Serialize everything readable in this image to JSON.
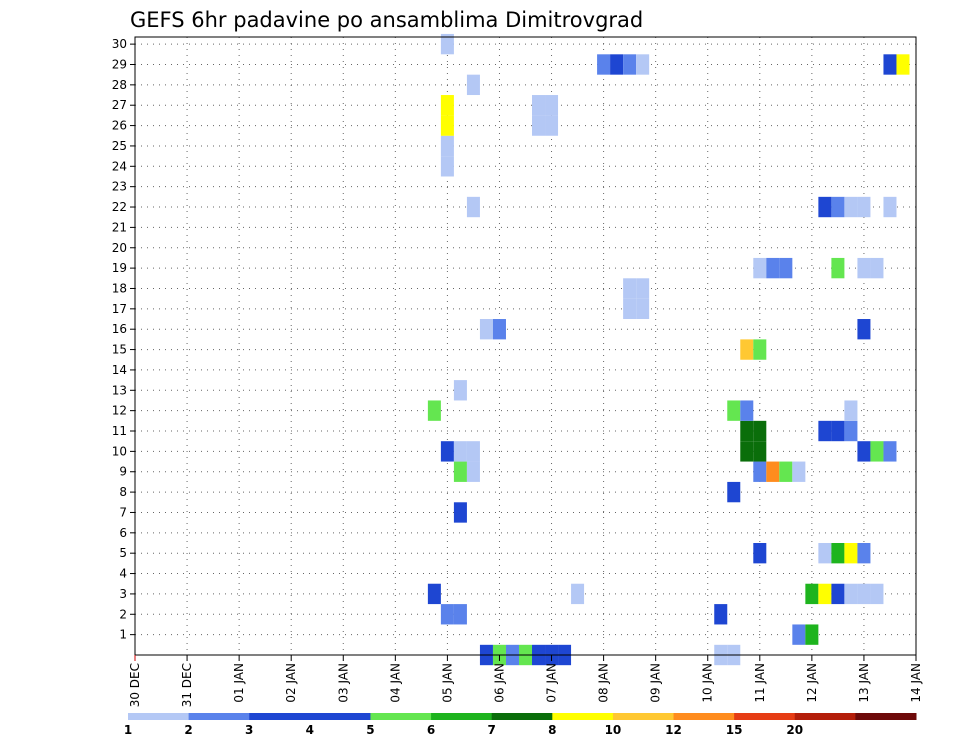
{
  "chart_data": {
    "type": "heatmap",
    "title": "GEFS 6hr padavine po ansamblima Dimitrovgrad",
    "xlabel": "",
    "ylabel": "",
    "x_tick_labels": [
      "30 DEC",
      "31 DEC",
      "01 JAN",
      "02 JAN",
      "03 JAN",
      "04 JAN",
      "05 JAN",
      "06 JAN",
      "07 JAN",
      "08 JAN",
      "09 JAN",
      "10 JAN",
      "11 JAN",
      "12 JAN",
      "13 JAN",
      "14 JAN"
    ],
    "x_range_days": [
      0,
      15
    ],
    "y_tick_labels": [
      "1",
      "2",
      "3",
      "4",
      "5",
      "6",
      "7",
      "8",
      "9",
      "10",
      "11",
      "12",
      "13",
      "14",
      "15",
      "16",
      "17",
      "18",
      "19",
      "20",
      "21",
      "22",
      "23",
      "24",
      "25",
      "26",
      "27",
      "28",
      "29",
      "30"
    ],
    "y_range": [
      0,
      30
    ],
    "grid": true,
    "legend": {
      "position": "bottom",
      "labels": [
        "1",
        "2",
        "3",
        "4",
        "5",
        "6",
        "7",
        "8",
        "10",
        "12",
        "15",
        "20"
      ],
      "colors": [
        "#b4c8f5",
        "#5a82eb",
        "#1e46d2",
        "#1e46d2",
        "#64e650",
        "#1eb41e",
        "#0a6e0a",
        "#ffff00",
        "#ffc832",
        "#ff8c1e",
        "#e63c14",
        "#b41e0a",
        "#6e0a0a"
      ]
    },
    "cell_width_days": 0.25,
    "cells": [
      {
        "member": 0,
        "day": 6.75,
        "class": 2
      },
      {
        "member": 0,
        "day": 7.0,
        "class": 4
      },
      {
        "member": 0,
        "day": 7.25,
        "class": 1
      },
      {
        "member": 0,
        "day": 7.5,
        "class": 4
      },
      {
        "member": 0,
        "day": 7.75,
        "class": 2
      },
      {
        "member": 0,
        "day": 8.0,
        "class": 2
      },
      {
        "member": 0,
        "day": 8.25,
        "class": 2
      },
      {
        "member": 0,
        "day": 11.25,
        "class": 0
      },
      {
        "member": 0,
        "day": 11.5,
        "class": 0
      },
      {
        "member": 1,
        "day": 12.75,
        "class": 1
      },
      {
        "member": 1,
        "day": 13.0,
        "class": 5
      },
      {
        "member": 2,
        "day": 6.0,
        "class": 1
      },
      {
        "member": 2,
        "day": 6.25,
        "class": 1
      },
      {
        "member": 2,
        "day": 11.25,
        "class": 2
      },
      {
        "member": 3,
        "day": 5.75,
        "class": 2
      },
      {
        "member": 3,
        "day": 8.5,
        "class": 0
      },
      {
        "member": 3,
        "day": 13.0,
        "class": 5
      },
      {
        "member": 3,
        "day": 13.25,
        "class": 7
      },
      {
        "member": 3,
        "day": 13.5,
        "class": 2
      },
      {
        "member": 3,
        "day": 13.75,
        "class": 0
      },
      {
        "member": 3,
        "day": 14.0,
        "class": 0
      },
      {
        "member": 3,
        "day": 14.25,
        "class": 0
      },
      {
        "member": 5,
        "day": 12.0,
        "class": 2
      },
      {
        "member": 5,
        "day": 13.25,
        "class": 0
      },
      {
        "member": 5,
        "day": 13.5,
        "class": 5
      },
      {
        "member": 5,
        "day": 13.75,
        "class": 7
      },
      {
        "member": 5,
        "day": 14.0,
        "class": 1
      },
      {
        "member": 7,
        "day": 6.25,
        "class": 2
      },
      {
        "member": 8,
        "day": 11.5,
        "class": 2
      },
      {
        "member": 9,
        "day": 6.25,
        "class": 4
      },
      {
        "member": 9,
        "day": 6.5,
        "class": 0
      },
      {
        "member": 9,
        "day": 12.0,
        "class": 1
      },
      {
        "member": 9,
        "day": 12.25,
        "class": 9
      },
      {
        "member": 9,
        "day": 12.5,
        "class": 4
      },
      {
        "member": 9,
        "day": 12.75,
        "class": 0
      },
      {
        "member": 10,
        "day": 6.0,
        "class": 2
      },
      {
        "member": 10,
        "day": 6.25,
        "class": 0
      },
      {
        "member": 10,
        "day": 6.5,
        "class": 0
      },
      {
        "member": 10,
        "day": 11.75,
        "class": 6
      },
      {
        "member": 10,
        "day": 12.0,
        "class": 6
      },
      {
        "member": 10,
        "day": 14.0,
        "class": 2
      },
      {
        "member": 10,
        "day": 14.25,
        "class": 4
      },
      {
        "member": 10,
        "day": 14.5,
        "class": 1
      },
      {
        "member": 11,
        "day": 11.75,
        "class": 6
      },
      {
        "member": 11,
        "day": 12.0,
        "class": 6
      },
      {
        "member": 11,
        "day": 13.25,
        "class": 2
      },
      {
        "member": 11,
        "day": 13.5,
        "class": 2
      },
      {
        "member": 11,
        "day": 13.75,
        "class": 1
      },
      {
        "member": 12,
        "day": 5.75,
        "class": 4
      },
      {
        "member": 12,
        "day": 11.5,
        "class": 4
      },
      {
        "member": 12,
        "day": 11.75,
        "class": 1
      },
      {
        "member": 12,
        "day": 13.75,
        "class": 0
      },
      {
        "member": 13,
        "day": 6.25,
        "class": 0
      },
      {
        "member": 15,
        "day": 11.75,
        "class": 8
      },
      {
        "member": 15,
        "day": 12.0,
        "class": 4
      },
      {
        "member": 16,
        "day": 6.75,
        "class": 0
      },
      {
        "member": 16,
        "day": 7.0,
        "class": 1
      },
      {
        "member": 16,
        "day": 14.0,
        "class": 2
      },
      {
        "member": 17,
        "day": 9.5,
        "class": 0
      },
      {
        "member": 17,
        "day": 9.75,
        "class": 0
      },
      {
        "member": 18,
        "day": 9.5,
        "class": 0
      },
      {
        "member": 18,
        "day": 9.75,
        "class": 0
      },
      {
        "member": 19,
        "day": 12.0,
        "class": 0
      },
      {
        "member": 19,
        "day": 12.25,
        "class": 1
      },
      {
        "member": 19,
        "day": 12.5,
        "class": 1
      },
      {
        "member": 19,
        "day": 13.5,
        "class": 4
      },
      {
        "member": 19,
        "day": 14.0,
        "class": 0
      },
      {
        "member": 19,
        "day": 14.25,
        "class": 0
      },
      {
        "member": 22,
        "day": 6.5,
        "class": 0
      },
      {
        "member": 22,
        "day": 13.25,
        "class": 2
      },
      {
        "member": 22,
        "day": 13.5,
        "class": 1
      },
      {
        "member": 22,
        "day": 13.75,
        "class": 0
      },
      {
        "member": 22,
        "day": 14.0,
        "class": 0
      },
      {
        "member": 22,
        "day": 14.5,
        "class": 0
      },
      {
        "member": 24,
        "day": 6.0,
        "class": 0
      },
      {
        "member": 25,
        "day": 6.0,
        "class": 0
      },
      {
        "member": 26,
        "day": 6.0,
        "class": 7
      },
      {
        "member": 26,
        "day": 7.75,
        "class": 0
      },
      {
        "member": 26,
        "day": 8.0,
        "class": 0
      },
      {
        "member": 27,
        "day": 6.0,
        "class": 7
      },
      {
        "member": 27,
        "day": 7.75,
        "class": 0
      },
      {
        "member": 27,
        "day": 8.0,
        "class": 0
      },
      {
        "member": 28,
        "day": 6.5,
        "class": 0
      },
      {
        "member": 29,
        "day": 9.0,
        "class": 1
      },
      {
        "member": 29,
        "day": 9.25,
        "class": 2
      },
      {
        "member": 29,
        "day": 9.5,
        "class": 1
      },
      {
        "member": 29,
        "day": 9.75,
        "class": 0
      },
      {
        "member": 29,
        "day": 14.5,
        "class": 2
      },
      {
        "member": 29,
        "day": 14.75,
        "class": 7
      },
      {
        "member": 30,
        "day": 6.0,
        "class": 0
      }
    ]
  }
}
